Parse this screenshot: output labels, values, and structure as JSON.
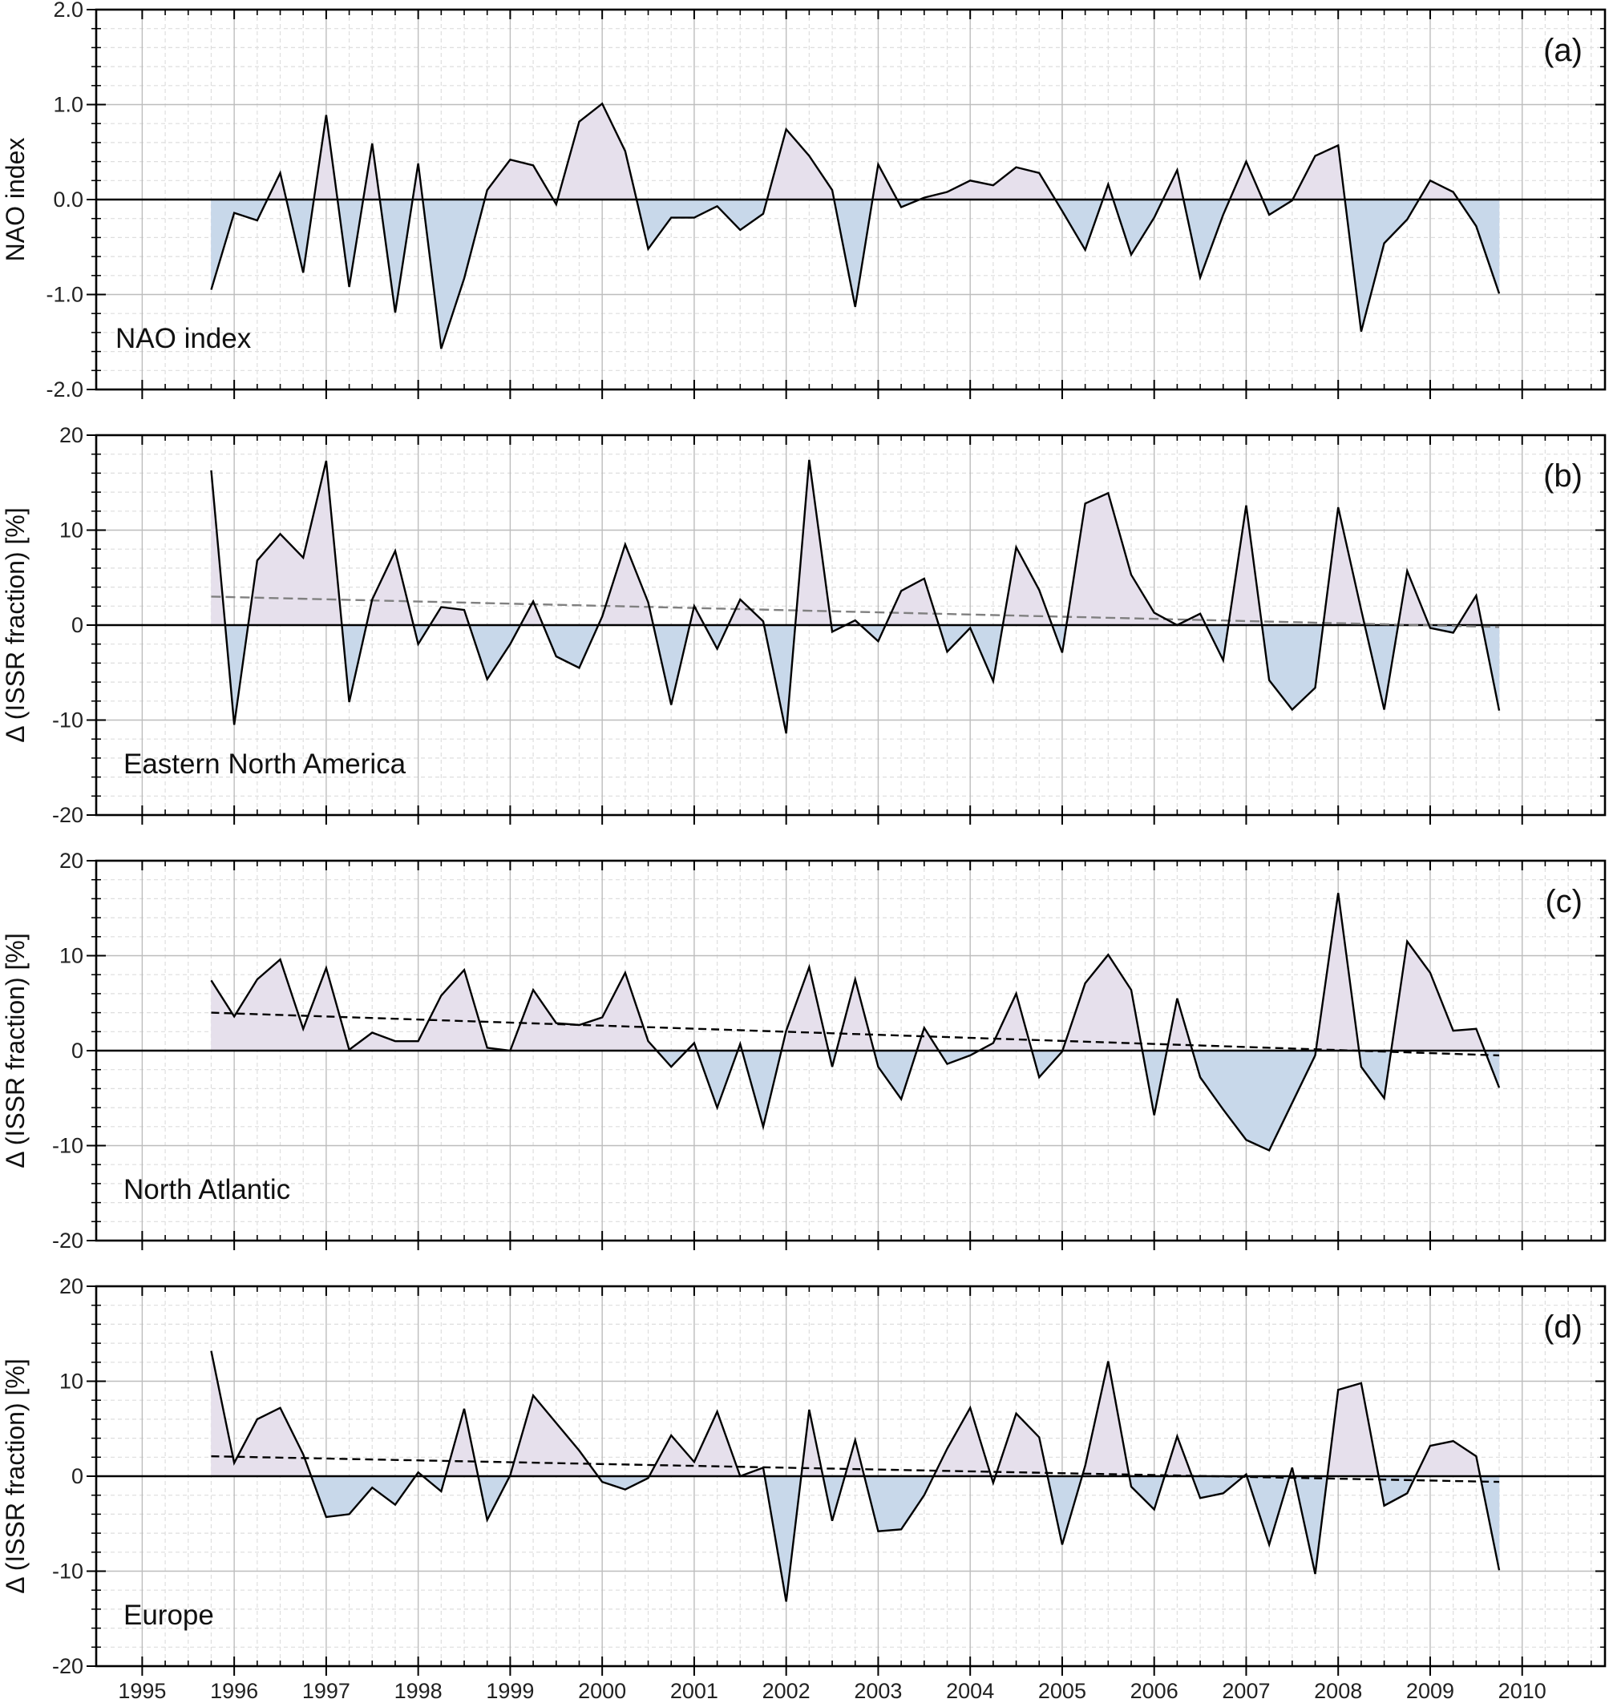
{
  "colors": {
    "positive_fill": "#e6e0ec",
    "negative_fill": "#c8d8ea",
    "line": "#000000",
    "trend_b": "#808080",
    "trend": "#000000",
    "grid": "#bdbdbd",
    "minor_grid": "#dedede"
  },
  "x_ticks": [
    "1995",
    "1996",
    "1997",
    "1998",
    "1999",
    "2000",
    "2001",
    "2002",
    "2003",
    "2004",
    "2005",
    "2006",
    "2007",
    "2008",
    "2009",
    "2010"
  ],
  "chart_data": [
    {
      "type": "area",
      "panel": "(a)",
      "label": "NAO index",
      "ylabel": "NAO index",
      "xlim": [
        1994.5,
        2010.9
      ],
      "ylim": [
        -2.0,
        2.0
      ],
      "yticks": [
        "-2.0",
        "-1.0",
        "0.0",
        "1.0",
        "2.0"
      ],
      "grid": true,
      "x": [
        1995.75,
        1996.0,
        1996.25,
        1996.5,
        1996.75,
        1997.0,
        1997.25,
        1997.5,
        1997.75,
        1998.0,
        1998.25,
        1998.5,
        1998.75,
        1999.0,
        1999.25,
        1999.5,
        1999.75,
        2000.0,
        2000.25,
        2000.5,
        2000.75,
        2001.0,
        2001.25,
        2001.5,
        2001.75,
        2002.0,
        2002.25,
        2002.5,
        2002.75,
        2003.0,
        2003.25,
        2003.5,
        2003.75,
        2004.0,
        2004.25,
        2004.5,
        2004.75,
        2005.0,
        2005.25,
        2005.5,
        2005.75,
        2006.0,
        2006.25,
        2006.5,
        2006.75,
        2007.0,
        2007.25,
        2007.5,
        2007.75,
        2008.0,
        2008.25,
        2008.5,
        2008.75,
        2009.0,
        2009.25,
        2009.5,
        2009.75
      ],
      "values": [
        -0.95,
        -0.14,
        -0.22,
        0.28,
        -0.77,
        0.89,
        -0.92,
        0.59,
        -1.19,
        0.38,
        -1.57,
        -0.83,
        0.1,
        0.42,
        0.36,
        -0.05,
        0.82,
        1.01,
        0.51,
        -0.52,
        -0.19,
        -0.19,
        -0.07,
        -0.32,
        -0.15,
        0.74,
        0.46,
        0.1,
        -1.13,
        0.37,
        -0.08,
        0.02,
        0.08,
        0.2,
        0.15,
        0.34,
        0.28,
        -0.12,
        -0.53,
        0.16,
        -0.58,
        -0.19,
        0.31,
        -0.82,
        -0.16,
        0.4,
        -0.16,
        -0.01,
        0.46,
        0.57,
        -1.39,
        -0.46,
        -0.21,
        0.2,
        0.08,
        -0.28,
        -0.99
      ],
      "trend": null
    },
    {
      "type": "area",
      "panel": "(b)",
      "label": "Eastern North America",
      "ylabel": "Δ (ISSR fraction) [%]",
      "xlim": [
        1994.5,
        2010.9
      ],
      "ylim": [
        -20,
        20
      ],
      "yticks": [
        "-20",
        "-10",
        "0",
        "10",
        "20"
      ],
      "grid": true,
      "x": [
        1995.75,
        1996.0,
        1996.25,
        1996.5,
        1996.75,
        1997.0,
        1997.25,
        1997.5,
        1997.75,
        1998.0,
        1998.25,
        1998.5,
        1998.75,
        1999.0,
        1999.25,
        1999.5,
        1999.75,
        2000.0,
        2000.25,
        2000.5,
        2000.75,
        2001.0,
        2001.25,
        2001.5,
        2001.75,
        2002.0,
        2002.25,
        2002.5,
        2002.75,
        2003.0,
        2003.25,
        2003.5,
        2003.75,
        2004.0,
        2004.25,
        2004.5,
        2004.75,
        2005.0,
        2005.25,
        2005.5,
        2005.75,
        2006.0,
        2006.25,
        2006.5,
        2006.75,
        2007.0,
        2007.25,
        2007.5,
        2007.75,
        2008.0,
        2008.25,
        2008.5,
        2008.75,
        2009.0,
        2009.25,
        2009.5,
        2009.75
      ],
      "values": [
        16.3,
        -10.5,
        6.8,
        9.6,
        7.1,
        17.3,
        -8.1,
        2.7,
        7.8,
        -2.0,
        1.9,
        1.6,
        -5.7,
        -2.0,
        2.5,
        -3.3,
        -4.5,
        0.9,
        8.5,
        2.4,
        -8.4,
        2.0,
        -2.5,
        2.7,
        0.4,
        -11.4,
        17.4,
        -0.7,
        0.5,
        -1.7,
        3.6,
        4.9,
        -2.8,
        -0.3,
        -5.9,
        8.2,
        3.7,
        -2.9,
        12.8,
        13.9,
        5.3,
        1.3,
        0.0,
        1.2,
        -3.7,
        12.6,
        -5.8,
        -8.9,
        -6.6,
        12.4,
        1.6,
        -8.9,
        5.7,
        -0.3,
        -0.8,
        3.1,
        -9.0
      ],
      "trend": {
        "x": [
          1995.75,
          2009.75
        ],
        "y": [
          3.0,
          -0.2
        ],
        "style": "gray-dashed"
      }
    },
    {
      "type": "area",
      "panel": "(c)",
      "label": "North Atlantic",
      "ylabel": "Δ (ISSR fraction) [%]",
      "xlim": [
        1994.5,
        2010.9
      ],
      "ylim": [
        -20,
        20
      ],
      "yticks": [
        "-20",
        "-10",
        "0",
        "10",
        "20"
      ],
      "grid": true,
      "x": [
        1995.75,
        1996.0,
        1996.25,
        1996.5,
        1996.75,
        1997.0,
        1997.25,
        1997.5,
        1997.75,
        1998.0,
        1998.25,
        1998.5,
        1998.75,
        1999.0,
        1999.25,
        1999.5,
        1999.75,
        2000.0,
        2000.25,
        2000.5,
        2000.75,
        2001.0,
        2001.25,
        2001.5,
        2001.75,
        2002.0,
        2002.25,
        2002.5,
        2002.75,
        2003.0,
        2003.25,
        2003.5,
        2003.75,
        2004.0,
        2004.25,
        2004.5,
        2004.75,
        2005.0,
        2005.25,
        2005.5,
        2005.75,
        2006.0,
        2006.25,
        2006.5,
        2006.75,
        2007.0,
        2007.25,
        2007.5,
        2007.75,
        2008.0,
        2008.25,
        2008.5,
        2008.75,
        2009.0,
        2009.25,
        2009.5,
        2009.75
      ],
      "values": [
        7.4,
        3.6,
        7.5,
        9.6,
        2.3,
        8.7,
        0.1,
        1.9,
        1.0,
        1.0,
        5.8,
        8.5,
        0.3,
        0.0,
        6.4,
        2.9,
        2.7,
        3.5,
        8.2,
        1.0,
        -1.7,
        0.8,
        -6.0,
        0.7,
        -8.0,
        2.1,
        8.8,
        -1.7,
        7.5,
        -1.7,
        -5.1,
        2.4,
        -1.4,
        -0.5,
        0.8,
        6.0,
        -2.8,
        -0.1,
        7.1,
        10.1,
        6.4,
        -6.8,
        5.5,
        -2.8,
        -6.2,
        -9.4,
        -10.5,
        -5.5,
        -0.5,
        16.6,
        -1.7,
        -5.0,
        11.5,
        8.2,
        2.1,
        2.3,
        -3.9
      ],
      "trend": {
        "x": [
          1995.75,
          2009.75
        ],
        "y": [
          4.0,
          -0.5
        ],
        "style": "black-dashed"
      }
    },
    {
      "type": "area",
      "panel": "(d)",
      "label": "Europe",
      "ylabel": "Δ (ISSR fraction) [%]",
      "xlim": [
        1994.5,
        2010.9
      ],
      "ylim": [
        -20,
        20
      ],
      "yticks": [
        "-20",
        "-10",
        "0",
        "10",
        "20"
      ],
      "grid": true,
      "x": [
        1995.75,
        1996.0,
        1996.25,
        1996.5,
        1996.75,
        1997.0,
        1997.25,
        1997.5,
        1997.75,
        1998.0,
        1998.25,
        1998.5,
        1998.75,
        1999.0,
        1999.25,
        1999.5,
        1999.75,
        2000.0,
        2000.25,
        2000.5,
        2000.75,
        2001.0,
        2001.25,
        2001.5,
        2001.75,
        2002.0,
        2002.25,
        2002.5,
        2002.75,
        2003.0,
        2003.25,
        2003.5,
        2003.75,
        2004.0,
        2004.25,
        2004.5,
        2004.75,
        2005.0,
        2005.25,
        2005.5,
        2005.75,
        2006.0,
        2006.25,
        2006.5,
        2006.75,
        2007.0,
        2007.25,
        2007.5,
        2007.75,
        2008.0,
        2008.25,
        2008.5,
        2008.75,
        2009.0,
        2009.25,
        2009.5,
        2009.75
      ],
      "values": [
        13.2,
        1.4,
        6.0,
        7.2,
        2.3,
        -4.3,
        -4.0,
        -1.2,
        -3.0,
        0.4,
        -1.6,
        7.1,
        -4.6,
        0.1,
        8.5,
        5.6,
        2.7,
        -0.6,
        -1.4,
        -0.2,
        4.3,
        1.5,
        6.8,
        0.0,
        0.9,
        -13.2,
        7.0,
        -4.7,
        3.8,
        -5.8,
        -5.6,
        -2.0,
        2.9,
        7.2,
        -0.7,
        6.6,
        4.1,
        -7.2,
        1.1,
        12.1,
        -1.1,
        -3.5,
        4.2,
        -2.3,
        -1.8,
        0.2,
        -7.2,
        0.9,
        -10.3,
        9.1,
        9.8,
        -3.1,
        -1.8,
        3.2,
        3.7,
        2.1,
        -9.9
      ],
      "trend": {
        "x": [
          1995.75,
          2009.75
        ],
        "y": [
          2.1,
          -0.6
        ],
        "style": "black-dashed"
      }
    }
  ]
}
